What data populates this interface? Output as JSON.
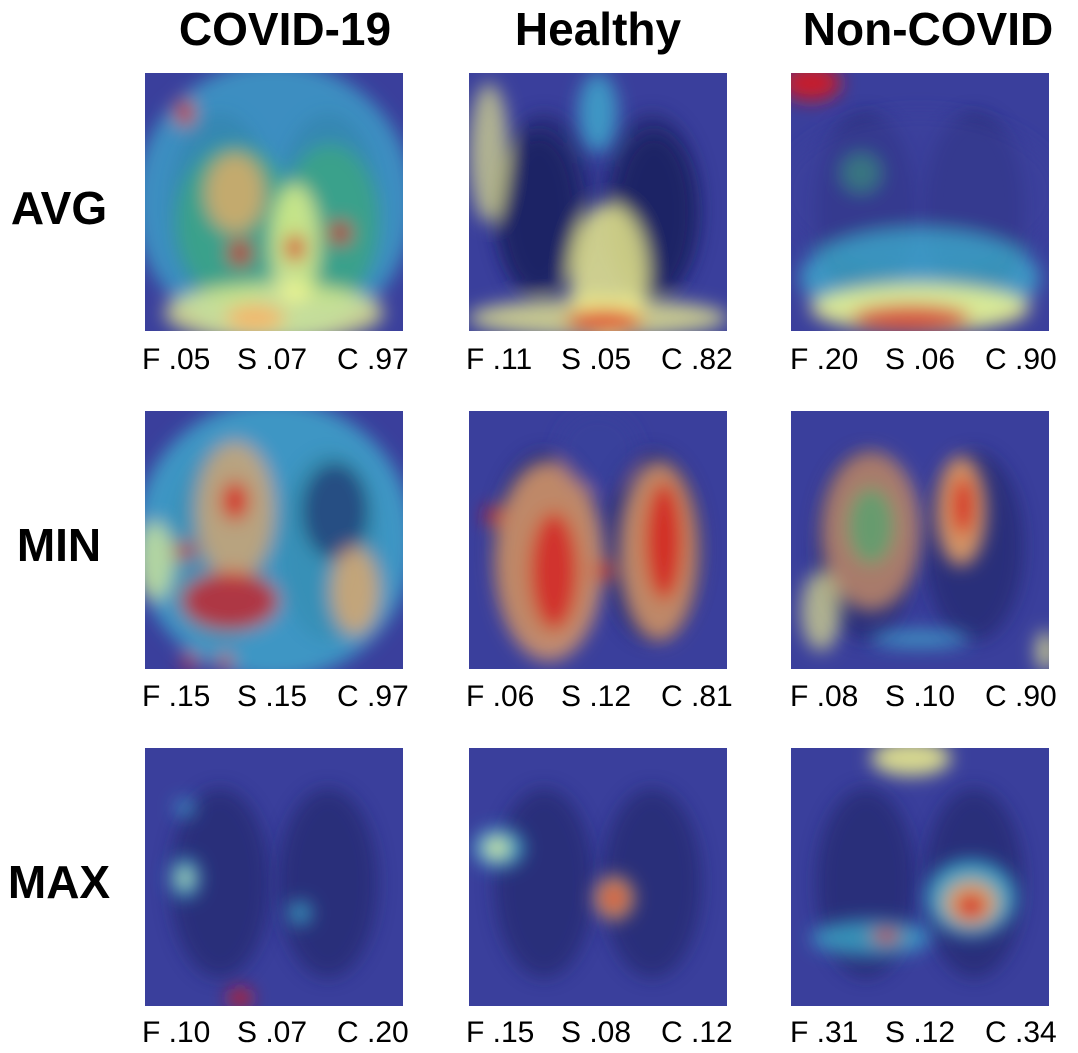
{
  "columns": [
    {
      "label": "COVID-19"
    },
    {
      "label": "Healthy"
    },
    {
      "label": "Non-COVID"
    }
  ],
  "rows": [
    {
      "label": "AVG",
      "captions": [
        {
          "f": "F .05",
          "s": "S .07",
          "c": "C .97"
        },
        {
          "f": "F .11",
          "s": "S .05",
          "c": "C .82"
        },
        {
          "f": "F .20",
          "s": "S .06",
          "c": "C .90"
        }
      ]
    },
    {
      "label": "MIN",
      "captions": [
        {
          "f": "F .15",
          "s": "S .15",
          "c": "C .97"
        },
        {
          "f": "F .06",
          "s": "S .12",
          "c": "C .81"
        },
        {
          "f": "F .08",
          "s": "S .10",
          "c": "C .90"
        }
      ]
    },
    {
      "label": "MAX",
      "captions": [
        {
          "f": "F .10",
          "s": "S .07",
          "c": "C .20"
        },
        {
          "f": "F .15",
          "s": "S .08",
          "c": "C .12"
        },
        {
          "f": "F .31",
          "s": "S .12",
          "c": "C .34"
        }
      ]
    }
  ],
  "colors": {
    "base": "#3a3f9c",
    "lung_dark": "#1c2260",
    "hot": "#d7191c",
    "warm": "#fdae61",
    "yellow": "#ffff8c",
    "cyan": "#3fd0e0",
    "green": "#3cb371"
  }
}
